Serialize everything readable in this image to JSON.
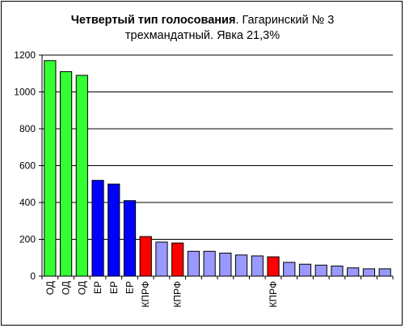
{
  "chart_data": {
    "type": "bar",
    "title_bold": "Четвертый тип голосования",
    "title_rest": ". Гагаринский № 3",
    "title_line2": "трехмандатный. Явка 21,3%",
    "ylim": [
      0,
      1200
    ],
    "yticks": [
      0,
      200,
      400,
      600,
      800,
      1000,
      1200
    ],
    "grid": true,
    "categories": [
      "ОД",
      "ОД",
      "ОД",
      "ЕР",
      "ЕР",
      "ЕР",
      "КПРФ",
      "",
      "КПРФ",
      "",
      "",
      "",
      "",
      "",
      "КПРФ",
      "",
      "",
      "",
      "",
      "",
      "",
      ""
    ],
    "values": [
      1170,
      1110,
      1090,
      520,
      500,
      410,
      215,
      185,
      180,
      135,
      135,
      125,
      115,
      110,
      105,
      75,
      65,
      60,
      55,
      45,
      40,
      40
    ],
    "colors": [
      "#33ff33",
      "#33ff33",
      "#33ff33",
      "#0000ff",
      "#0000ff",
      "#0000ff",
      "#ff0000",
      "#9999ff",
      "#ff0000",
      "#9999ff",
      "#9999ff",
      "#9999ff",
      "#9999ff",
      "#9999ff",
      "#ff0000",
      "#9999ff",
      "#9999ff",
      "#9999ff",
      "#9999ff",
      "#9999ff",
      "#9999ff",
      "#9999ff"
    ]
  }
}
